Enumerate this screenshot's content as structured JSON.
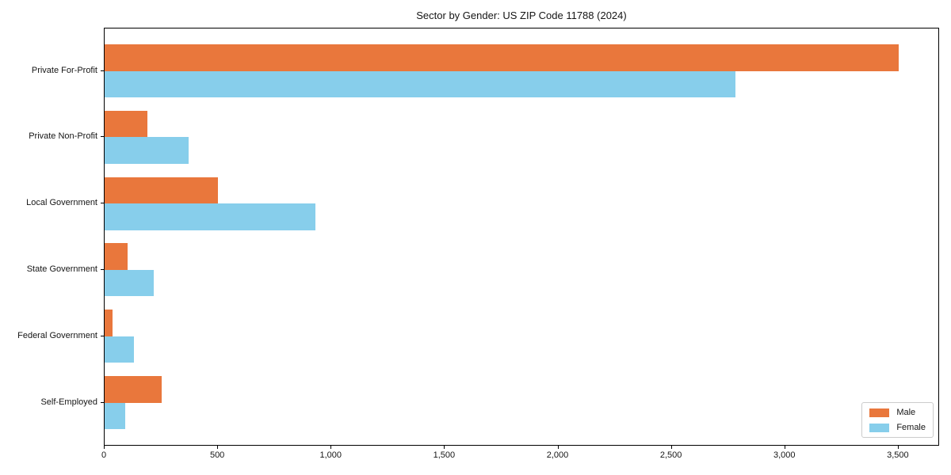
{
  "title": "Sector by Gender: US ZIP Code 11788 (2024)",
  "chart_data": {
    "type": "bar",
    "orientation": "horizontal",
    "title": "Sector by Gender: US ZIP Code 11788 (2024)",
    "categories": [
      "Private For-Profit",
      "Private Non-Profit",
      "Local Government",
      "State Government",
      "Federal Government",
      "Self-Employed"
    ],
    "series": [
      {
        "name": "Male",
        "color": "#e9773c",
        "values": [
          3500,
          190,
          500,
          100,
          35,
          250
        ]
      },
      {
        "name": "Female",
        "color": "#87ceeb",
        "values": [
          2780,
          370,
          930,
          215,
          130,
          90
        ]
      }
    ],
    "xlabel": "",
    "ylabel": "",
    "xlim": [
      0,
      3675
    ],
    "xticks": [
      0,
      500,
      1000,
      1500,
      2000,
      2500,
      3000,
      3500
    ],
    "xtick_labels": [
      "0",
      "500",
      "1,000",
      "1,500",
      "2,000",
      "2,500",
      "3,000",
      "3,500"
    ],
    "grid": false,
    "legend": {
      "position": "lower right",
      "entries": [
        "Male",
        "Female"
      ]
    }
  },
  "colors": {
    "male": "#e9773c",
    "female": "#87ceeb",
    "axis": "#000000",
    "text": "#151515",
    "legend_border": "#cccccc",
    "background": "#ffffff"
  }
}
